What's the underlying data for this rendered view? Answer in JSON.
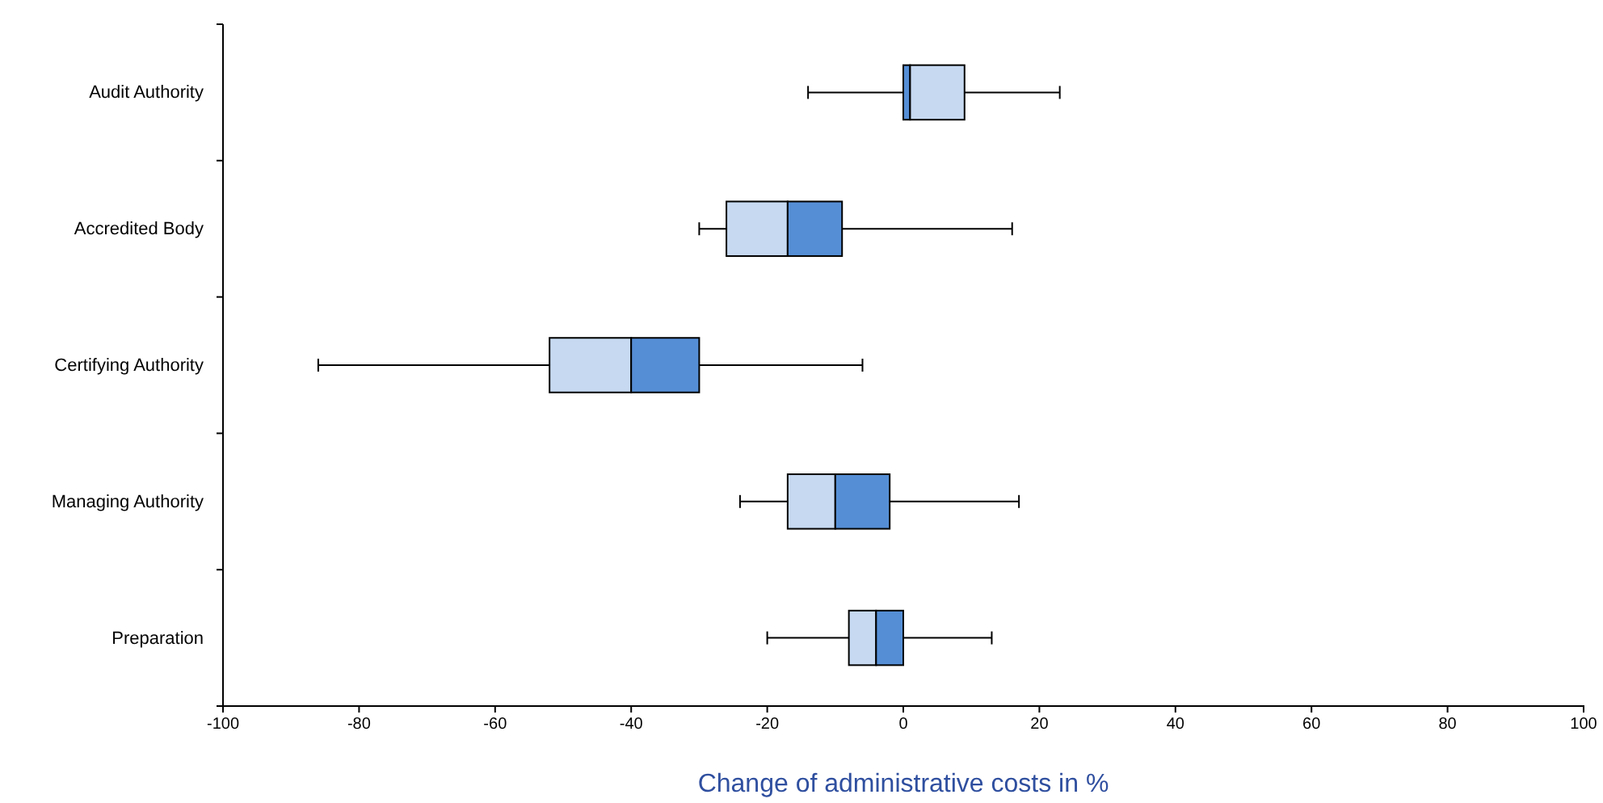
{
  "chart_data": {
    "type": "box",
    "orientation": "horizontal",
    "xlabel": "Change of administrative costs in %",
    "categories": [
      "Audit Authority",
      "Accredited Body",
      "Certifying Authority",
      "Managing Authority",
      "Preparation"
    ],
    "boxes": [
      {
        "low": -14,
        "q1": 0,
        "median": 1,
        "q3": 9,
        "high": 23
      },
      {
        "low": -30,
        "q1": -26,
        "median": -17,
        "q3": -9,
        "high": 16
      },
      {
        "low": -86,
        "q1": -52,
        "median": -40,
        "q3": -30,
        "high": -6
      },
      {
        "low": -24,
        "q1": -17,
        "median": -10,
        "q3": -2,
        "high": 17
      },
      {
        "low": -20,
        "q1": -8,
        "median": -4,
        "q3": 0,
        "high": 13
      }
    ],
    "colors": [
      [
        "#558ed5",
        "#c6d9f1"
      ],
      [
        "#c6d9f1",
        "#558ed5"
      ],
      [
        "#c6d9f1",
        "#558ed5"
      ],
      [
        "#c6d9f1",
        "#558ed5"
      ],
      [
        "#c6d9f1",
        "#558ed5"
      ]
    ],
    "xlim": [
      -100,
      100
    ],
    "xticks": [
      -100,
      -80,
      -60,
      -40,
      -20,
      0,
      20,
      40,
      60,
      80,
      100
    ],
    "grid": false
  }
}
